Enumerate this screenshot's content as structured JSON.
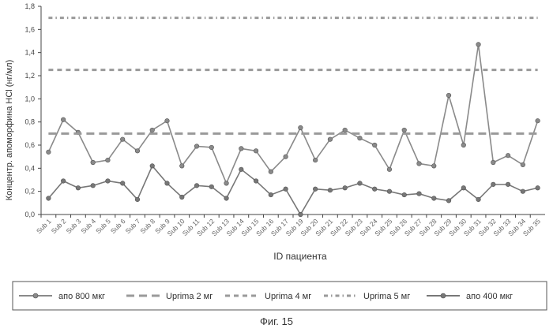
{
  "figure_caption": "Фиг. 15",
  "chart_data": {
    "type": "line",
    "xlabel": "ID пациента",
    "ylabel": "Концентр. апоморфина HCl (нг/мл)",
    "ylim": [
      0,
      1.8
    ],
    "yticks": [
      "0,0",
      "0,2",
      "0,4",
      "0,6",
      "0,8",
      "1,0",
      "1,2",
      "1,4",
      "1,6",
      "1,8"
    ],
    "grid": false,
    "legend_placement": "bottom",
    "categories": [
      "Sub 1",
      "Sub 2",
      "Sub 3",
      "Sub 4",
      "Sub 5",
      "Sub 6",
      "Sub 7",
      "Sub 8",
      "Sub 9",
      "Sub 10",
      "Sub 11",
      "Sub 12",
      "Sub 13",
      "Sub 14",
      "Sub 15",
      "Sub 16",
      "Sub 17",
      "Sub 19",
      "Sub 20",
      "Sub 21",
      "Sub 22",
      "Sub 23",
      "Sub 24",
      "Sub 25",
      "Sub 26",
      "Sub 27",
      "Sub 28",
      "Sub 29",
      "Sub 30",
      "Sub 31",
      "Sub 32",
      "Sub 33",
      "Sub 34",
      "Sub 35"
    ],
    "series": [
      {
        "name": "апо 800 мкг",
        "style": "solid-marker",
        "color": "#8a8a8a",
        "values": [
          0.54,
          0.82,
          0.71,
          0.45,
          0.47,
          0.65,
          0.55,
          0.73,
          0.81,
          0.42,
          0.59,
          0.58,
          0.27,
          0.57,
          0.55,
          0.37,
          0.5,
          0.75,
          0.47,
          0.65,
          0.73,
          0.66,
          0.6,
          0.39,
          0.73,
          0.44,
          0.42,
          1.03,
          0.6,
          1.47,
          0.45,
          0.51,
          0.43,
          0.81
        ]
      },
      {
        "name": "Uprima 2 мг",
        "style": "dash-long",
        "color": "#9a9a9a",
        "values": [
          0.7,
          0.7,
          0.7,
          0.7,
          0.7,
          0.7,
          0.7,
          0.7,
          0.7,
          0.7,
          0.7,
          0.7,
          0.7,
          0.7,
          0.7,
          0.7,
          0.7,
          0.7,
          0.7,
          0.7,
          0.7,
          0.7,
          0.7,
          0.7,
          0.7,
          0.7,
          0.7,
          0.7,
          0.7,
          0.7,
          0.7,
          0.7,
          0.7,
          0.7
        ]
      },
      {
        "name": "Uprima  4 мг",
        "style": "dash-short",
        "color": "#9a9a9a",
        "values": [
          1.25,
          1.25,
          1.25,
          1.25,
          1.25,
          1.25,
          1.25,
          1.25,
          1.25,
          1.25,
          1.25,
          1.25,
          1.25,
          1.25,
          1.25,
          1.25,
          1.25,
          1.25,
          1.25,
          1.25,
          1.25,
          1.25,
          1.25,
          1.25,
          1.25,
          1.25,
          1.25,
          1.25,
          1.25,
          1.25,
          1.25,
          1.25,
          1.25,
          1.25
        ]
      },
      {
        "name": "Uprima 5 мг",
        "style": "dash-dot",
        "color": "#9a9a9a",
        "values": [
          1.7,
          1.7,
          1.7,
          1.7,
          1.7,
          1.7,
          1.7,
          1.7,
          1.7,
          1.7,
          1.7,
          1.7,
          1.7,
          1.7,
          1.7,
          1.7,
          1.7,
          1.7,
          1.7,
          1.7,
          1.7,
          1.7,
          1.7,
          1.7,
          1.7,
          1.7,
          1.7,
          1.7,
          1.7,
          1.7,
          1.7,
          1.7,
          1.7,
          1.7
        ]
      },
      {
        "name": "апо 400 мкг",
        "style": "solid-marker",
        "color": "#777777",
        "values": [
          0.14,
          0.29,
          0.23,
          0.25,
          0.29,
          0.27,
          0.13,
          0.42,
          0.27,
          0.15,
          0.25,
          0.24,
          0.14,
          0.39,
          0.29,
          0.17,
          0.22,
          0.0,
          0.22,
          0.21,
          0.23,
          0.27,
          0.22,
          0.2,
          0.17,
          0.18,
          0.14,
          0.12,
          0.23,
          0.13,
          0.26,
          0.26,
          0.2,
          0.23
        ]
      }
    ]
  }
}
